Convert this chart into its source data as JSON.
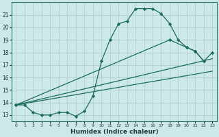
{
  "bg_color": "#cce8e8",
  "grid_color": "#aacccc",
  "line_color": "#1a6b5a",
  "xlabel": "Humidex (Indice chaleur)",
  "xlim": [
    -0.5,
    23.5
  ],
  "ylim": [
    12.5,
    22.0
  ],
  "xticks": [
    0,
    1,
    2,
    3,
    4,
    5,
    6,
    7,
    8,
    9,
    10,
    11,
    12,
    13,
    14,
    15,
    16,
    17,
    18,
    19,
    20,
    21,
    22,
    23
  ],
  "yticks": [
    13,
    14,
    15,
    16,
    17,
    18,
    19,
    20,
    21
  ],
  "curve1_x": [
    0,
    1,
    2,
    3,
    4,
    5,
    6,
    7,
    8,
    9,
    10,
    11,
    12,
    13,
    14,
    15,
    16,
    17,
    18,
    19,
    20,
    21,
    22
  ],
  "curve1_y": [
    13.8,
    13.8,
    13.2,
    13.0,
    13.0,
    13.2,
    13.2,
    12.9,
    13.3,
    14.5,
    17.3,
    19.0,
    20.3,
    20.5,
    21.5,
    21.5,
    21.5,
    21.1,
    20.3,
    19.0,
    18.4,
    18.1,
    17.3
  ],
  "curve2_x": [
    0,
    18,
    20,
    21,
    22,
    23
  ],
  "curve2_y": [
    13.8,
    19.0,
    18.4,
    18.1,
    17.3,
    18.0
  ],
  "line3_x": [
    0,
    23
  ],
  "line3_y": [
    13.8,
    17.5
  ],
  "line4_x": [
    0,
    23
  ],
  "line4_y": [
    13.8,
    16.5
  ]
}
